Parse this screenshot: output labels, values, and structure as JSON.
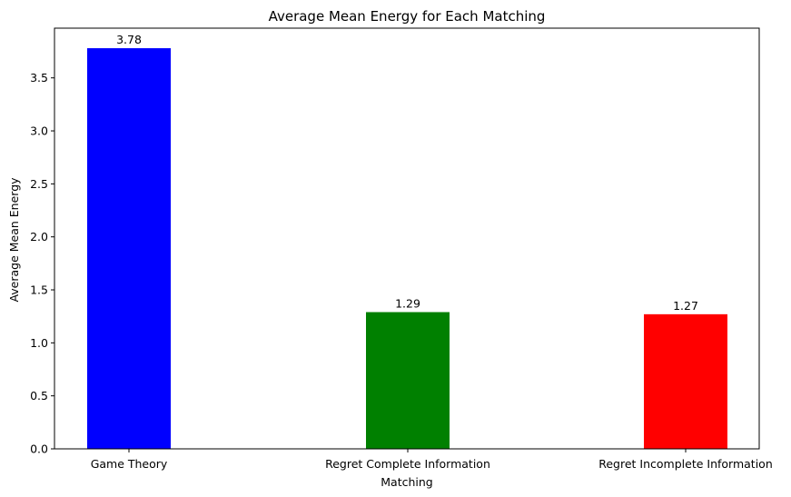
{
  "chart_data": {
    "type": "bar",
    "title": "Average Mean Energy for Each Matching",
    "xlabel": "Matching",
    "ylabel": "Average Mean Energy",
    "categories": [
      "Game Theory",
      "Regret Complete Information",
      "Regret Incomplete Information"
    ],
    "values": [
      3.78,
      1.29,
      1.27
    ],
    "value_labels": [
      "3.78",
      "1.29",
      "1.27"
    ],
    "colors": [
      "#0000ff",
      "#008000",
      "#ff0000"
    ],
    "ylim": [
      0,
      3.969
    ],
    "yticks": [
      0.0,
      0.5,
      1.0,
      1.5,
      2.0,
      2.5,
      3.0,
      3.5
    ],
    "ytick_labels": [
      "0.0",
      "0.5",
      "1.0",
      "1.5",
      "2.0",
      "2.5",
      "3.0",
      "3.5"
    ],
    "grid": false,
    "legend": "none"
  }
}
